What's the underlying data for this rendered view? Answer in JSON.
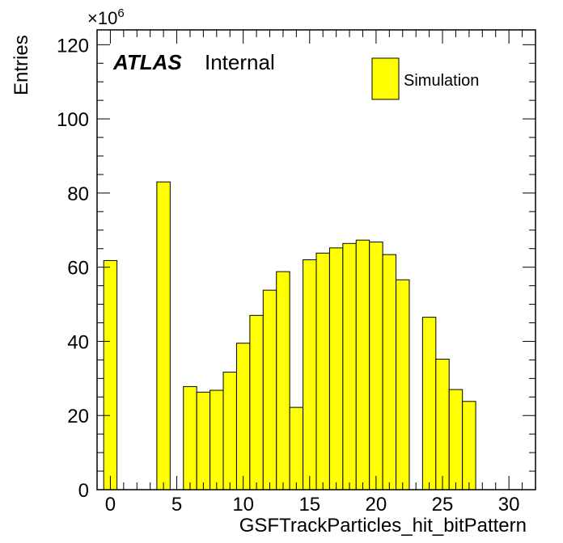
{
  "chart_data": {
    "type": "bar",
    "title": "",
    "xlabel": "GSFTrackParticles_hit_bitPattern",
    "ylabel": "Entries",
    "y_multiplier": {
      "base": "×10",
      "exponent": "6"
    },
    "xlim": [
      -1,
      32
    ],
    "ylim": [
      0,
      124
    ],
    "x_ticks": [
      0,
      5,
      10,
      15,
      20,
      25,
      30
    ],
    "y_ticks": [
      0,
      20,
      40,
      60,
      80,
      100,
      120
    ],
    "x_tick_labels": [
      "0",
      "5",
      "10",
      "15",
      "20",
      "25",
      "30"
    ],
    "y_tick_labels": [
      "0",
      "20",
      "40",
      "60",
      "80",
      "100",
      "120"
    ],
    "bin_width": 1,
    "bin_centers": [
      0,
      1,
      2,
      3,
      4,
      5,
      6,
      7,
      8,
      9,
      10,
      11,
      12,
      13,
      14,
      15,
      16,
      17,
      18,
      19,
      20,
      21,
      22,
      23,
      24,
      25,
      26,
      27,
      28,
      29,
      30,
      31
    ],
    "values": [
      61.8,
      0,
      0,
      0,
      83.0,
      0,
      27.8,
      26.3,
      26.8,
      31.7,
      39.5,
      47.0,
      53.8,
      58.8,
      22.2,
      62.0,
      63.8,
      65.2,
      66.4,
      67.3,
      66.8,
      63.4,
      56.6,
      0,
      46.5,
      35.2,
      27.0,
      23.8,
      0,
      0,
      0,
      0
    ],
    "series": [
      {
        "name": "Simulation",
        "color": "#ffff00"
      }
    ],
    "legend_position": "top-right",
    "label_atlas": "ATLAS",
    "label_status": "Internal",
    "grid": false,
    "fill_color": "#ffff00",
    "edge_color": "#000000"
  }
}
